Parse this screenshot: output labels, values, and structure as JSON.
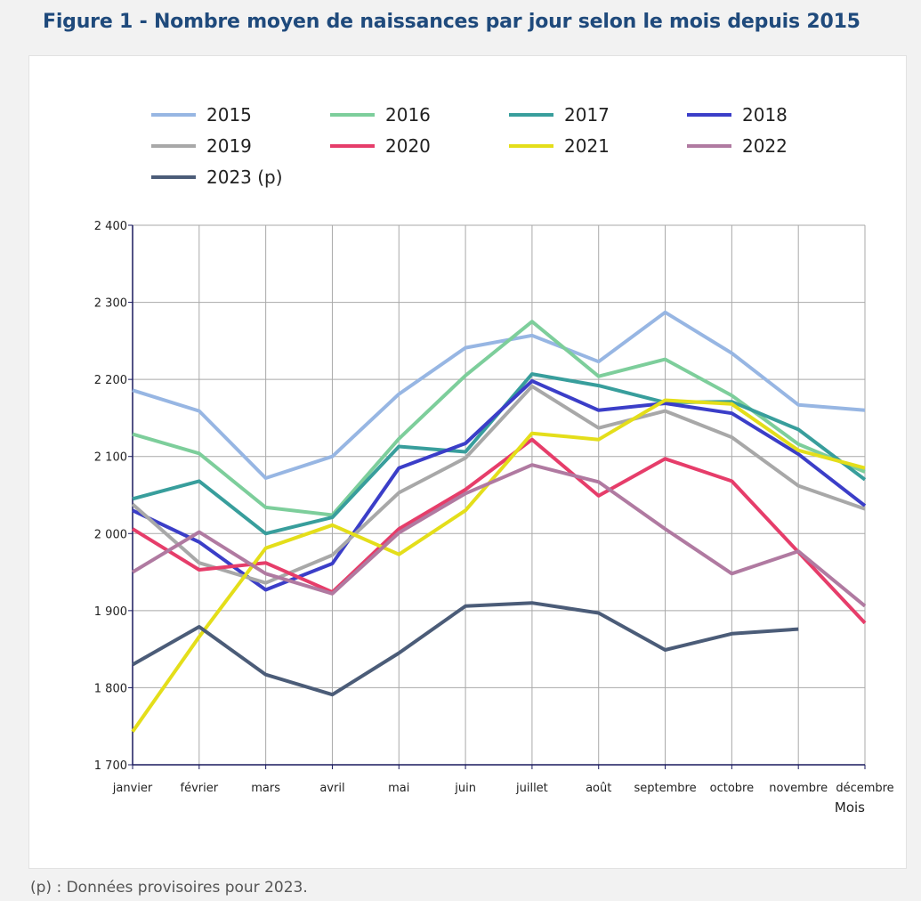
{
  "title": "Figure 1 - Nombre moyen de naissances par jour selon le mois depuis 2015",
  "footnote": "(p) : Données provisoires pour 2023.",
  "chart_data": {
    "type": "line",
    "title": "Figure 1 - Nombre moyen de naissances par jour selon le mois depuis 2015",
    "xlabel": "Mois",
    "ylabel": "",
    "ylim": [
      1700,
      2400
    ],
    "yticks": [
      1700,
      1800,
      1900,
      2000,
      2100,
      2200,
      2300,
      2400
    ],
    "ytick_labels": [
      "1 700",
      "1 800",
      "1 900",
      "2 000",
      "2 100",
      "2 200",
      "2 300",
      "2 400"
    ],
    "grid": true,
    "legend_position": "top",
    "categories": [
      "janvier",
      "février",
      "mars",
      "avril",
      "mai",
      "juin",
      "juillet",
      "août",
      "septembre",
      "octobre",
      "novembre",
      "décembre"
    ],
    "series": [
      {
        "name": "2015",
        "color": "#97b6e3",
        "values": [
          2186,
          2159,
          2072,
          2100,
          2181,
          2241,
          2257,
          2223,
          2287,
          2234,
          2167,
          2160
        ]
      },
      {
        "name": "2016",
        "color": "#7dce9b",
        "values": [
          2129,
          2104,
          2034,
          2024,
          2123,
          2205,
          2275,
          2204,
          2226,
          2179,
          2116,
          2080
        ]
      },
      {
        "name": "2017",
        "color": "#389e9c",
        "values": [
          2045,
          2068,
          2000,
          2021,
          2113,
          2106,
          2207,
          2192,
          2170,
          2171,
          2135,
          2070
        ]
      },
      {
        "name": "2018",
        "color": "#3b3ec8",
        "values": [
          2030,
          1989,
          1927,
          1961,
          2085,
          2117,
          2198,
          2160,
          2169,
          2156,
          2103,
          2036
        ]
      },
      {
        "name": "2019",
        "color": "#a8a8a8",
        "values": [
          2038,
          1962,
          1936,
          1972,
          2053,
          2098,
          2191,
          2137,
          2159,
          2125,
          2062,
          2032
        ]
      },
      {
        "name": "2020",
        "color": "#e63d6a",
        "values": [
          2006,
          1953,
          1962,
          1924,
          2006,
          2057,
          2122,
          2049,
          2097,
          2068,
          1976,
          1884
        ]
      },
      {
        "name": "2021",
        "color": "#e4de1a",
        "values": [
          1743,
          1866,
          1981,
          2011,
          1973,
          2030,
          2130,
          2122,
          2173,
          2168,
          2108,
          2085
        ]
      },
      {
        "name": "2022",
        "color": "#b07aa1",
        "values": [
          1950,
          2002,
          1948,
          1922,
          2001,
          2052,
          2089,
          2067,
          2006,
          1948,
          1977,
          1906
        ]
      },
      {
        "name": "2023 (p)",
        "color": "#4b5c78",
        "values": [
          1830,
          1879,
          1817,
          1791,
          1845,
          1906,
          1910,
          1897,
          1849,
          1870,
          1876,
          null
        ]
      }
    ]
  }
}
